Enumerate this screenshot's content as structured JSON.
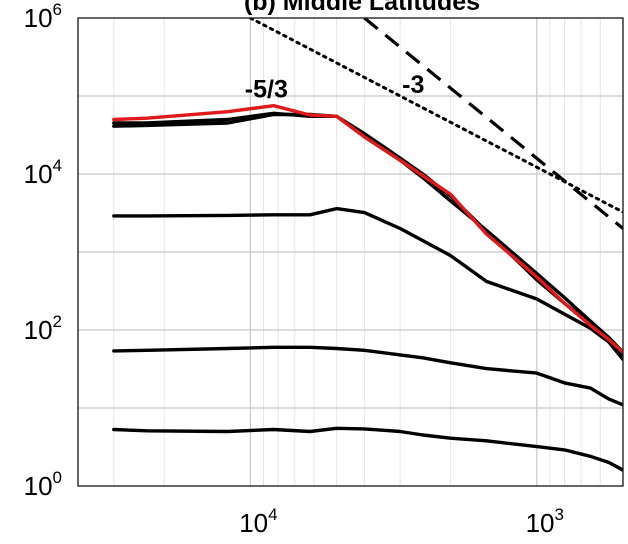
{
  "chart_data": {
    "type": "line",
    "title": "(b) Middle Latitudes",
    "xlabel": "",
    "ylabel": "",
    "x_scale": "log",
    "x_reversed": true,
    "y_scale": "log",
    "xlim": [
      40000,
      500
    ],
    "ylim": [
      1,
      1000000
    ],
    "grid": true,
    "x_ticks": [
      {
        "base": "10",
        "exp": "4",
        "value": 10000
      },
      {
        "base": "10",
        "exp": "3",
        "value": 1000
      }
    ],
    "y_ticks": [
      {
        "base": "10",
        "exp": "0",
        "value": 1
      },
      {
        "base": "10",
        "exp": "2",
        "value": 100
      },
      {
        "base": "10",
        "exp": "4",
        "value": 10000
      },
      {
        "base": "10",
        "exp": "6",
        "value": 1000000
      }
    ],
    "colors": {
      "black_series": "#000000",
      "red_series": "#e0191b",
      "reference": "#000000"
    },
    "series": [
      {
        "color": "#000000",
        "points": [
          [
            30000,
            45000
          ],
          [
            23000,
            45000
          ],
          [
            12000,
            50000
          ],
          [
            8300,
            60000
          ],
          [
            6200,
            55000
          ],
          [
            5000,
            55000
          ],
          [
            4000,
            30000
          ],
          [
            3000,
            15000
          ],
          [
            2500,
            9000
          ],
          [
            2000,
            4500
          ],
          [
            1500,
            1900
          ],
          [
            1000,
            530
          ],
          [
            800,
            260
          ],
          [
            650,
            130
          ],
          [
            560,
            80
          ],
          [
            500,
            52
          ]
        ]
      },
      {
        "color": "#000000",
        "points": [
          [
            30000,
            41000
          ],
          [
            23000,
            42000
          ],
          [
            12000,
            45000
          ],
          [
            8300,
            58000
          ],
          [
            6200,
            58000
          ],
          [
            5000,
            55000
          ],
          [
            4000,
            33000
          ],
          [
            3000,
            16000
          ],
          [
            2500,
            10000
          ],
          [
            2000,
            5200
          ],
          [
            1500,
            1850
          ],
          [
            1000,
            440
          ],
          [
            800,
            220
          ],
          [
            650,
            120
          ],
          [
            560,
            72
          ],
          [
            500,
            46
          ]
        ]
      },
      {
        "color": "#000000",
        "points": [
          [
            30000,
            2900
          ],
          [
            23000,
            2900
          ],
          [
            12000,
            2950
          ],
          [
            8300,
            3000
          ],
          [
            6200,
            3000
          ],
          [
            5000,
            3600
          ],
          [
            4000,
            3200
          ],
          [
            3000,
            2000
          ],
          [
            2500,
            1400
          ],
          [
            2000,
            900
          ],
          [
            1500,
            420
          ],
          [
            1000,
            250
          ],
          [
            800,
            160
          ],
          [
            650,
            105
          ],
          [
            560,
            70
          ],
          [
            500,
            42
          ]
        ]
      },
      {
        "color": "#000000",
        "points": [
          [
            30000,
            54
          ],
          [
            23000,
            55
          ],
          [
            12000,
            58
          ],
          [
            8300,
            60
          ],
          [
            6200,
            60
          ],
          [
            5000,
            58
          ],
          [
            4000,
            55
          ],
          [
            3000,
            48
          ],
          [
            2500,
            44
          ],
          [
            2000,
            38
          ],
          [
            1500,
            32
          ],
          [
            1000,
            28
          ],
          [
            800,
            21
          ],
          [
            650,
            18
          ],
          [
            560,
            13
          ],
          [
            500,
            11
          ]
        ]
      },
      {
        "color": "#000000",
        "points": [
          [
            30000,
            5.3
          ],
          [
            23000,
            5.1
          ],
          [
            12000,
            5.0
          ],
          [
            8300,
            5.3
          ],
          [
            6200,
            5.0
          ],
          [
            5000,
            5.5
          ],
          [
            4000,
            5.4
          ],
          [
            3000,
            5.0
          ],
          [
            2500,
            4.5
          ],
          [
            2000,
            4.1
          ],
          [
            1500,
            3.8
          ],
          [
            1000,
            3.2
          ],
          [
            800,
            2.9
          ],
          [
            650,
            2.4
          ],
          [
            560,
            2.0
          ],
          [
            500,
            1.6
          ]
        ]
      },
      {
        "color": "#e0191b",
        "points": [
          [
            30000,
            50000
          ],
          [
            23000,
            52000
          ],
          [
            12000,
            63000
          ],
          [
            8300,
            75000
          ],
          [
            6200,
            57000
          ],
          [
            5000,
            55000
          ],
          [
            4000,
            30000
          ],
          [
            3000,
            15000
          ],
          [
            2500,
            9500
          ],
          [
            2000,
            5500
          ],
          [
            1500,
            1700
          ],
          [
            1000,
            480
          ],
          [
            800,
            220
          ],
          [
            650,
            115
          ],
          [
            560,
            75
          ],
          [
            500,
            52
          ]
        ]
      }
    ],
    "reference_lines": [
      {
        "label": "-5/3",
        "style": "dotted",
        "points": [
          [
            10000,
            1000000
          ],
          [
            500,
            3250
          ]
        ]
      },
      {
        "label": "-3",
        "style": "dashed",
        "points": [
          [
            4000,
            1000000
          ],
          [
            500,
            2000
          ]
        ]
      }
    ],
    "annotations": [
      {
        "text": "-5/3",
        "x": 8800,
        "y": 95000
      },
      {
        "text": "-3",
        "x": 2700,
        "y": 110000
      }
    ]
  }
}
